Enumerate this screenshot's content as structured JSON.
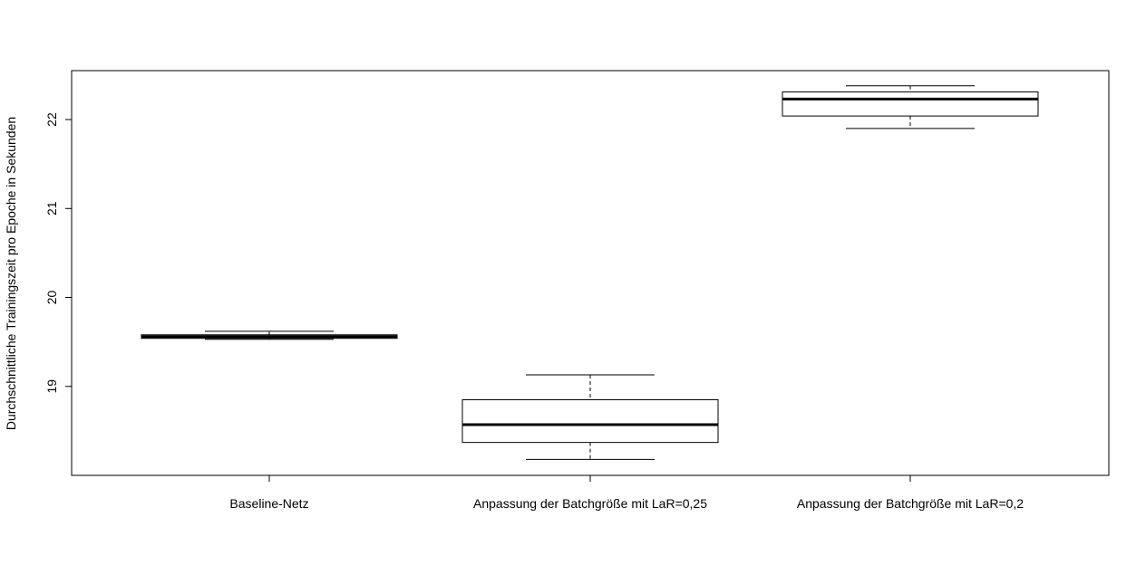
{
  "chart_data": {
    "type": "boxplot",
    "title": "",
    "xlabel": "",
    "ylabel": "Durchschnittliche Trainingszeit pro Epoche in Sekunden",
    "ylim": [
      18.0,
      22.55
    ],
    "yticks": [
      19,
      20,
      21,
      22
    ],
    "grid": false,
    "categories": [
      "Baseline-Netz",
      "Anpassung der Batchgröße mit LaR=0,25",
      "Anpassung der Batchgröße mit LaR=0,2"
    ],
    "boxes": [
      {
        "whisker_low": 19.53,
        "q1": 19.54,
        "median": 19.56,
        "q3": 19.58,
        "whisker_high": 19.62
      },
      {
        "whisker_low": 18.18,
        "q1": 18.37,
        "median": 18.57,
        "q3": 18.85,
        "whisker_high": 19.13
      },
      {
        "whisker_low": 21.9,
        "q1": 22.04,
        "median": 22.23,
        "q3": 22.31,
        "whisker_high": 22.38
      }
    ]
  }
}
